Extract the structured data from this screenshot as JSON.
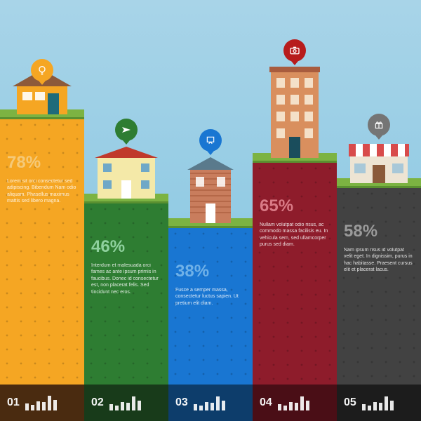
{
  "background": {
    "sky_top": "#a8d4e8",
    "sky_bottom": "#7fc3e0"
  },
  "columns": [
    {
      "id": "01",
      "percent": "78%",
      "blurb": "Lorem sit orci consectetur sed adipiscing. Bibendum Nam odio aliquam. Phasellus maximus mattis sed libero magna.",
      "pillar_height": 380,
      "soil_color": "#f5a623",
      "pct_color": "#f5c978",
      "text_color": "#ffffff",
      "pin_color": "#f5a623",
      "icon": "bulb",
      "footer_bg": "#4a2b10",
      "pin_above": 40,
      "building": "house1",
      "spark": [
        0.45,
        0.35,
        0.6,
        0.55,
        0.95,
        0.7
      ]
    },
    {
      "id": "02",
      "percent": "46%",
      "blurb": "Interdum et malesuada orci fames ac ante ipsum primis in faucibus. Donec id consectetur est, non placerat felis. Sed tincidunt nec eros.",
      "pillar_height": 260,
      "soil_color": "#2e7d32",
      "pct_color": "#8fd19e",
      "text_color": "#ffffff",
      "pin_color": "#2e7d32",
      "icon": "plane",
      "footer_bg": "#183b1a",
      "pin_above": 75,
      "building": "house2",
      "spark": [
        0.4,
        0.3,
        0.55,
        0.5,
        0.9,
        0.65
      ]
    },
    {
      "id": "03",
      "percent": "38%",
      "blurb": "Fusce a semper massa, consectetur luctus sapien. Ut pretium elit diam.",
      "pillar_height": 225,
      "soil_color": "#1976d2",
      "pct_color": "#6fb1e8",
      "text_color": "#ffffff",
      "pin_color": "#1976d2",
      "icon": "art",
      "footer_bg": "#0d3d6b",
      "pin_above": 95,
      "building": "house3",
      "spark": [
        0.4,
        0.3,
        0.55,
        0.5,
        0.9,
        0.65
      ]
    },
    {
      "id": "04",
      "percent": "65%",
      "blurb": "Nullam volutpat odio risus, ac commodo massa facilisis eu. In vehicula sem, sed ullamcorper purus sed diam.",
      "pillar_height": 318,
      "soil_color": "#8e1c2b",
      "pct_color": "#d97a86",
      "text_color": "#ffffff",
      "pin_color": "#b71c1c",
      "icon": "camera",
      "footer_bg": "#4a0e16",
      "pin_above": 130,
      "building": "tower",
      "spark": [
        0.4,
        0.3,
        0.55,
        0.5,
        0.9,
        0.65
      ]
    },
    {
      "id": "05",
      "percent": "58%",
      "blurb": "Nam ipsum risus id volutpat velit eget. In dignissim, purus in hac habitasse. Praesent cursus elit et placerat lacus.",
      "pillar_height": 282,
      "soil_color": "#424242",
      "pct_color": "#9a9a9a",
      "text_color": "#ffffff",
      "pin_color": "#757575",
      "icon": "gift",
      "footer_bg": "#1c1c1c",
      "pin_above": 60,
      "building": "shop",
      "spark": [
        0.4,
        0.3,
        0.55,
        0.5,
        0.9,
        0.65
      ]
    }
  ]
}
